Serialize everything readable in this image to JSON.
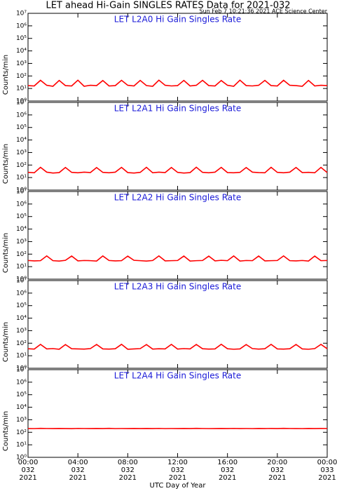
{
  "header": {
    "title": "LET ahead Hi-Gain SINGLES RATES Data for 2021-032",
    "subtitle": "Sun Feb  7 10:21:36 2021 ACE Science Center"
  },
  "chart_data": [
    {
      "type": "line",
      "title": "LET L2A0 Hi Gain Singles Rate",
      "ylabel": "Counts/min",
      "yscale": "log",
      "color": "#ff0000",
      "ylim": [
        1,
        10000000
      ],
      "yticks": [
        {
          "value": 1,
          "label": "10⁰"
        },
        {
          "value": 10,
          "label": "10¹"
        },
        {
          "value": 100,
          "label": "10²"
        },
        {
          "value": 1000,
          "label": "10³"
        },
        {
          "value": 10000,
          "label": "10⁴"
        },
        {
          "value": 100000,
          "label": "10⁵"
        },
        {
          "value": 1000000,
          "label": "10⁶"
        },
        {
          "value": 10000000,
          "label": "10⁷"
        }
      ],
      "xlim": [
        0,
        24
      ],
      "xticks": [
        0,
        4,
        8,
        12,
        16,
        20,
        24
      ],
      "x": [
        0,
        0.5,
        1,
        1.5,
        2,
        2.5,
        3,
        3.5,
        4,
        4.5,
        5,
        5.5,
        6,
        6.5,
        7,
        7.5,
        8,
        8.5,
        9,
        9.5,
        10,
        10.5,
        11,
        11.5,
        12,
        12.5,
        13,
        13.5,
        14,
        14.5,
        15,
        15.5,
        16,
        16.5,
        17,
        17.5,
        18,
        18.5,
        19,
        19.5,
        20,
        20.5,
        21,
        21.5,
        22,
        22.5,
        23,
        23.5,
        24
      ],
      "values": [
        17,
        16,
        45,
        18,
        15,
        44,
        17,
        16,
        46,
        15,
        18,
        17,
        43,
        16,
        17,
        45,
        18,
        16,
        44,
        17,
        15,
        46,
        18,
        16,
        17,
        44,
        16,
        18,
        45,
        17,
        16,
        43,
        18,
        15,
        46,
        17,
        16,
        18,
        44,
        17,
        16,
        45,
        18,
        17,
        15,
        44,
        16,
        18,
        17
      ]
    },
    {
      "type": "line",
      "title": "LET L2A1 Hi Gain Singles Rate",
      "ylabel": "Counts/min",
      "yscale": "log",
      "color": "#ff0000",
      "ylim": [
        1,
        10000000
      ],
      "yticks": [
        {
          "value": 1,
          "label": "10⁰"
        },
        {
          "value": 10,
          "label": "10¹"
        },
        {
          "value": 100,
          "label": "10²"
        },
        {
          "value": 1000,
          "label": "10³"
        },
        {
          "value": 10000,
          "label": "10⁴"
        },
        {
          "value": 100000,
          "label": "10⁵"
        },
        {
          "value": 1000000,
          "label": "10⁶"
        },
        {
          "value": 10000000,
          "label": "10⁷"
        }
      ],
      "xlim": [
        0,
        24
      ],
      "xticks": [
        0,
        4,
        8,
        12,
        16,
        20,
        24
      ],
      "x": [
        0,
        0.5,
        1,
        1.5,
        2,
        2.5,
        3,
        3.5,
        4,
        4.5,
        5,
        5.5,
        6,
        6.5,
        7,
        7.5,
        8,
        8.5,
        9,
        9.5,
        10,
        10.5,
        11,
        11.5,
        12,
        12.5,
        13,
        13.5,
        14,
        14.5,
        15,
        15.5,
        16,
        16.5,
        17,
        17.5,
        18,
        18.5,
        19,
        19.5,
        20,
        20.5,
        21,
        21.5,
        22,
        22.5,
        23,
        23.5,
        24
      ],
      "values": [
        26,
        24,
        66,
        27,
        23,
        25,
        64,
        26,
        24,
        27,
        25,
        63,
        26,
        24,
        27,
        65,
        25,
        23,
        26,
        66,
        24,
        27,
        25,
        64,
        26,
        23,
        25,
        67,
        26,
        24,
        27,
        65,
        25,
        24,
        26,
        63,
        27,
        25,
        24,
        66,
        26,
        24,
        27,
        64,
        25,
        26,
        24,
        65,
        25
      ]
    },
    {
      "type": "line",
      "title": "LET L2A2 Hi Gain Singles Rate",
      "ylabel": "Counts/min",
      "yscale": "log",
      "color": "#ff0000",
      "ylim": [
        1,
        10000000
      ],
      "yticks": [
        {
          "value": 1,
          "label": "10⁰"
        },
        {
          "value": 10,
          "label": "10¹"
        },
        {
          "value": 100,
          "label": "10²"
        },
        {
          "value": 1000,
          "label": "10³"
        },
        {
          "value": 10000,
          "label": "10⁴"
        },
        {
          "value": 100000,
          "label": "10⁵"
        },
        {
          "value": 1000000,
          "label": "10⁶"
        },
        {
          "value": 10000000,
          "label": "10⁷"
        }
      ],
      "xlim": [
        0,
        24
      ],
      "xticks": [
        0,
        4,
        8,
        12,
        16,
        20,
        24
      ],
      "x": [
        0,
        0.5,
        1,
        1.5,
        2,
        2.5,
        3,
        3.5,
        4,
        4.5,
        5,
        5.5,
        6,
        6.5,
        7,
        7.5,
        8,
        8.5,
        9,
        9.5,
        10,
        10.5,
        11,
        11.5,
        12,
        12.5,
        13,
        13.5,
        14,
        14.5,
        15,
        15.5,
        16,
        16.5,
        17,
        17.5,
        18,
        18.5,
        19,
        19.5,
        20,
        20.5,
        21,
        21.5,
        22,
        22.5,
        23,
        23.5,
        24
      ],
      "values": [
        31,
        29,
        30,
        72,
        30,
        28,
        32,
        70,
        29,
        31,
        30,
        28,
        71,
        31,
        29,
        30,
        69,
        32,
        30,
        28,
        31,
        72,
        29,
        30,
        31,
        70,
        28,
        30,
        31,
        69,
        29,
        32,
        30,
        71,
        28,
        31,
        30,
        70,
        29,
        30,
        31,
        72,
        30,
        29,
        31,
        28,
        70,
        30,
        31
      ]
    },
    {
      "type": "line",
      "title": "LET L2A3 Hi Gain Singles Rate",
      "ylabel": "Counts/min",
      "yscale": "log",
      "color": "#ff0000",
      "ylim": [
        1,
        10000000
      ],
      "yticks": [
        {
          "value": 1,
          "label": "10⁰"
        },
        {
          "value": 10,
          "label": "10¹"
        },
        {
          "value": 100,
          "label": "10²"
        },
        {
          "value": 1000,
          "label": "10³"
        },
        {
          "value": 10000,
          "label": "10⁴"
        },
        {
          "value": 100000,
          "label": "10⁵"
        },
        {
          "value": 1000000,
          "label": "10⁶"
        },
        {
          "value": 10000000,
          "label": "10⁷"
        }
      ],
      "xlim": [
        0,
        24
      ],
      "xticks": [
        0,
        4,
        8,
        12,
        16,
        20,
        24
      ],
      "x": [
        0,
        0.5,
        1,
        1.5,
        2,
        2.5,
        3,
        3.5,
        4,
        4.5,
        5,
        5.5,
        6,
        6.5,
        7,
        7.5,
        8,
        8.5,
        9,
        9.5,
        10,
        10.5,
        11,
        11.5,
        12,
        12.5,
        13,
        13.5,
        14,
        14.5,
        15,
        15.5,
        16,
        16.5,
        17,
        17.5,
        18,
        18.5,
        19,
        19.5,
        20,
        20.5,
        21,
        21.5,
        22,
        22.5,
        23,
        23.5,
        24
      ],
      "values": [
        36,
        34,
        80,
        35,
        37,
        33,
        78,
        36,
        35,
        34,
        37,
        79,
        35,
        34,
        36,
        81,
        33,
        35,
        37,
        78,
        34,
        36,
        35,
        80,
        34,
        37,
        35,
        79,
        36,
        34,
        35,
        82,
        36,
        33,
        35,
        78,
        37,
        34,
        36,
        80,
        35,
        34,
        36,
        79,
        35,
        33,
        37,
        81,
        36
      ]
    },
    {
      "type": "line",
      "title": "LET L2A4 Hi Gain Singles Rate",
      "ylabel": "Counts/min",
      "yscale": "log",
      "color": "#ff0000",
      "xlabel": "UTC Day of Year",
      "ylim": [
        1,
        10000000
      ],
      "yticks": [
        {
          "value": 1,
          "label": "10⁰"
        },
        {
          "value": 10,
          "label": "10¹"
        },
        {
          "value": 100,
          "label": "10²"
        },
        {
          "value": 1000,
          "label": "10³"
        },
        {
          "value": 10000,
          "label": "10⁴"
        },
        {
          "value": 100000,
          "label": "10⁵"
        },
        {
          "value": 1000000,
          "label": "10⁶"
        },
        {
          "value": 10000000,
          "label": "10⁷"
        }
      ],
      "xlim": [
        0,
        24
      ],
      "xticks": [
        {
          "value": 0,
          "label": [
            "00:00",
            "032",
            "2021"
          ]
        },
        {
          "value": 4,
          "label": [
            "04:00",
            "032",
            "2021"
          ]
        },
        {
          "value": 8,
          "label": [
            "08:00",
            "032",
            "2021"
          ]
        },
        {
          "value": 12,
          "label": [
            "12:00",
            "032",
            "2021"
          ]
        },
        {
          "value": 16,
          "label": [
            "16:00",
            "032",
            "2021"
          ]
        },
        {
          "value": 20,
          "label": [
            "20:00",
            "032",
            "2021"
          ]
        },
        {
          "value": 24,
          "label": [
            "00:00",
            "033",
            "2021"
          ]
        }
      ],
      "x": [
        0,
        0.5,
        1,
        1.5,
        2,
        2.5,
        3,
        3.5,
        4,
        4.5,
        5,
        5.5,
        6,
        6.5,
        7,
        7.5,
        8,
        8.5,
        9,
        9.5,
        10,
        10.5,
        11,
        11.5,
        12,
        12.5,
        13,
        13.5,
        14,
        14.5,
        15,
        15.5,
        16,
        16.5,
        17,
        17.5,
        18,
        18.5,
        19,
        19.5,
        20,
        20.5,
        21,
        21.5,
        22,
        22.5,
        23,
        23.5,
        24
      ],
      "values": [
        200,
        198,
        205,
        201,
        199,
        203,
        200,
        197,
        204,
        201,
        199,
        202,
        200,
        205,
        198,
        201,
        200,
        203,
        199,
        202,
        200,
        204,
        198,
        201,
        200,
        203,
        199,
        205,
        201,
        198,
        200,
        202,
        199,
        204,
        200,
        201,
        198,
        203,
        200,
        202,
        199,
        205,
        201,
        200,
        198,
        203,
        200,
        202,
        201
      ]
    }
  ]
}
